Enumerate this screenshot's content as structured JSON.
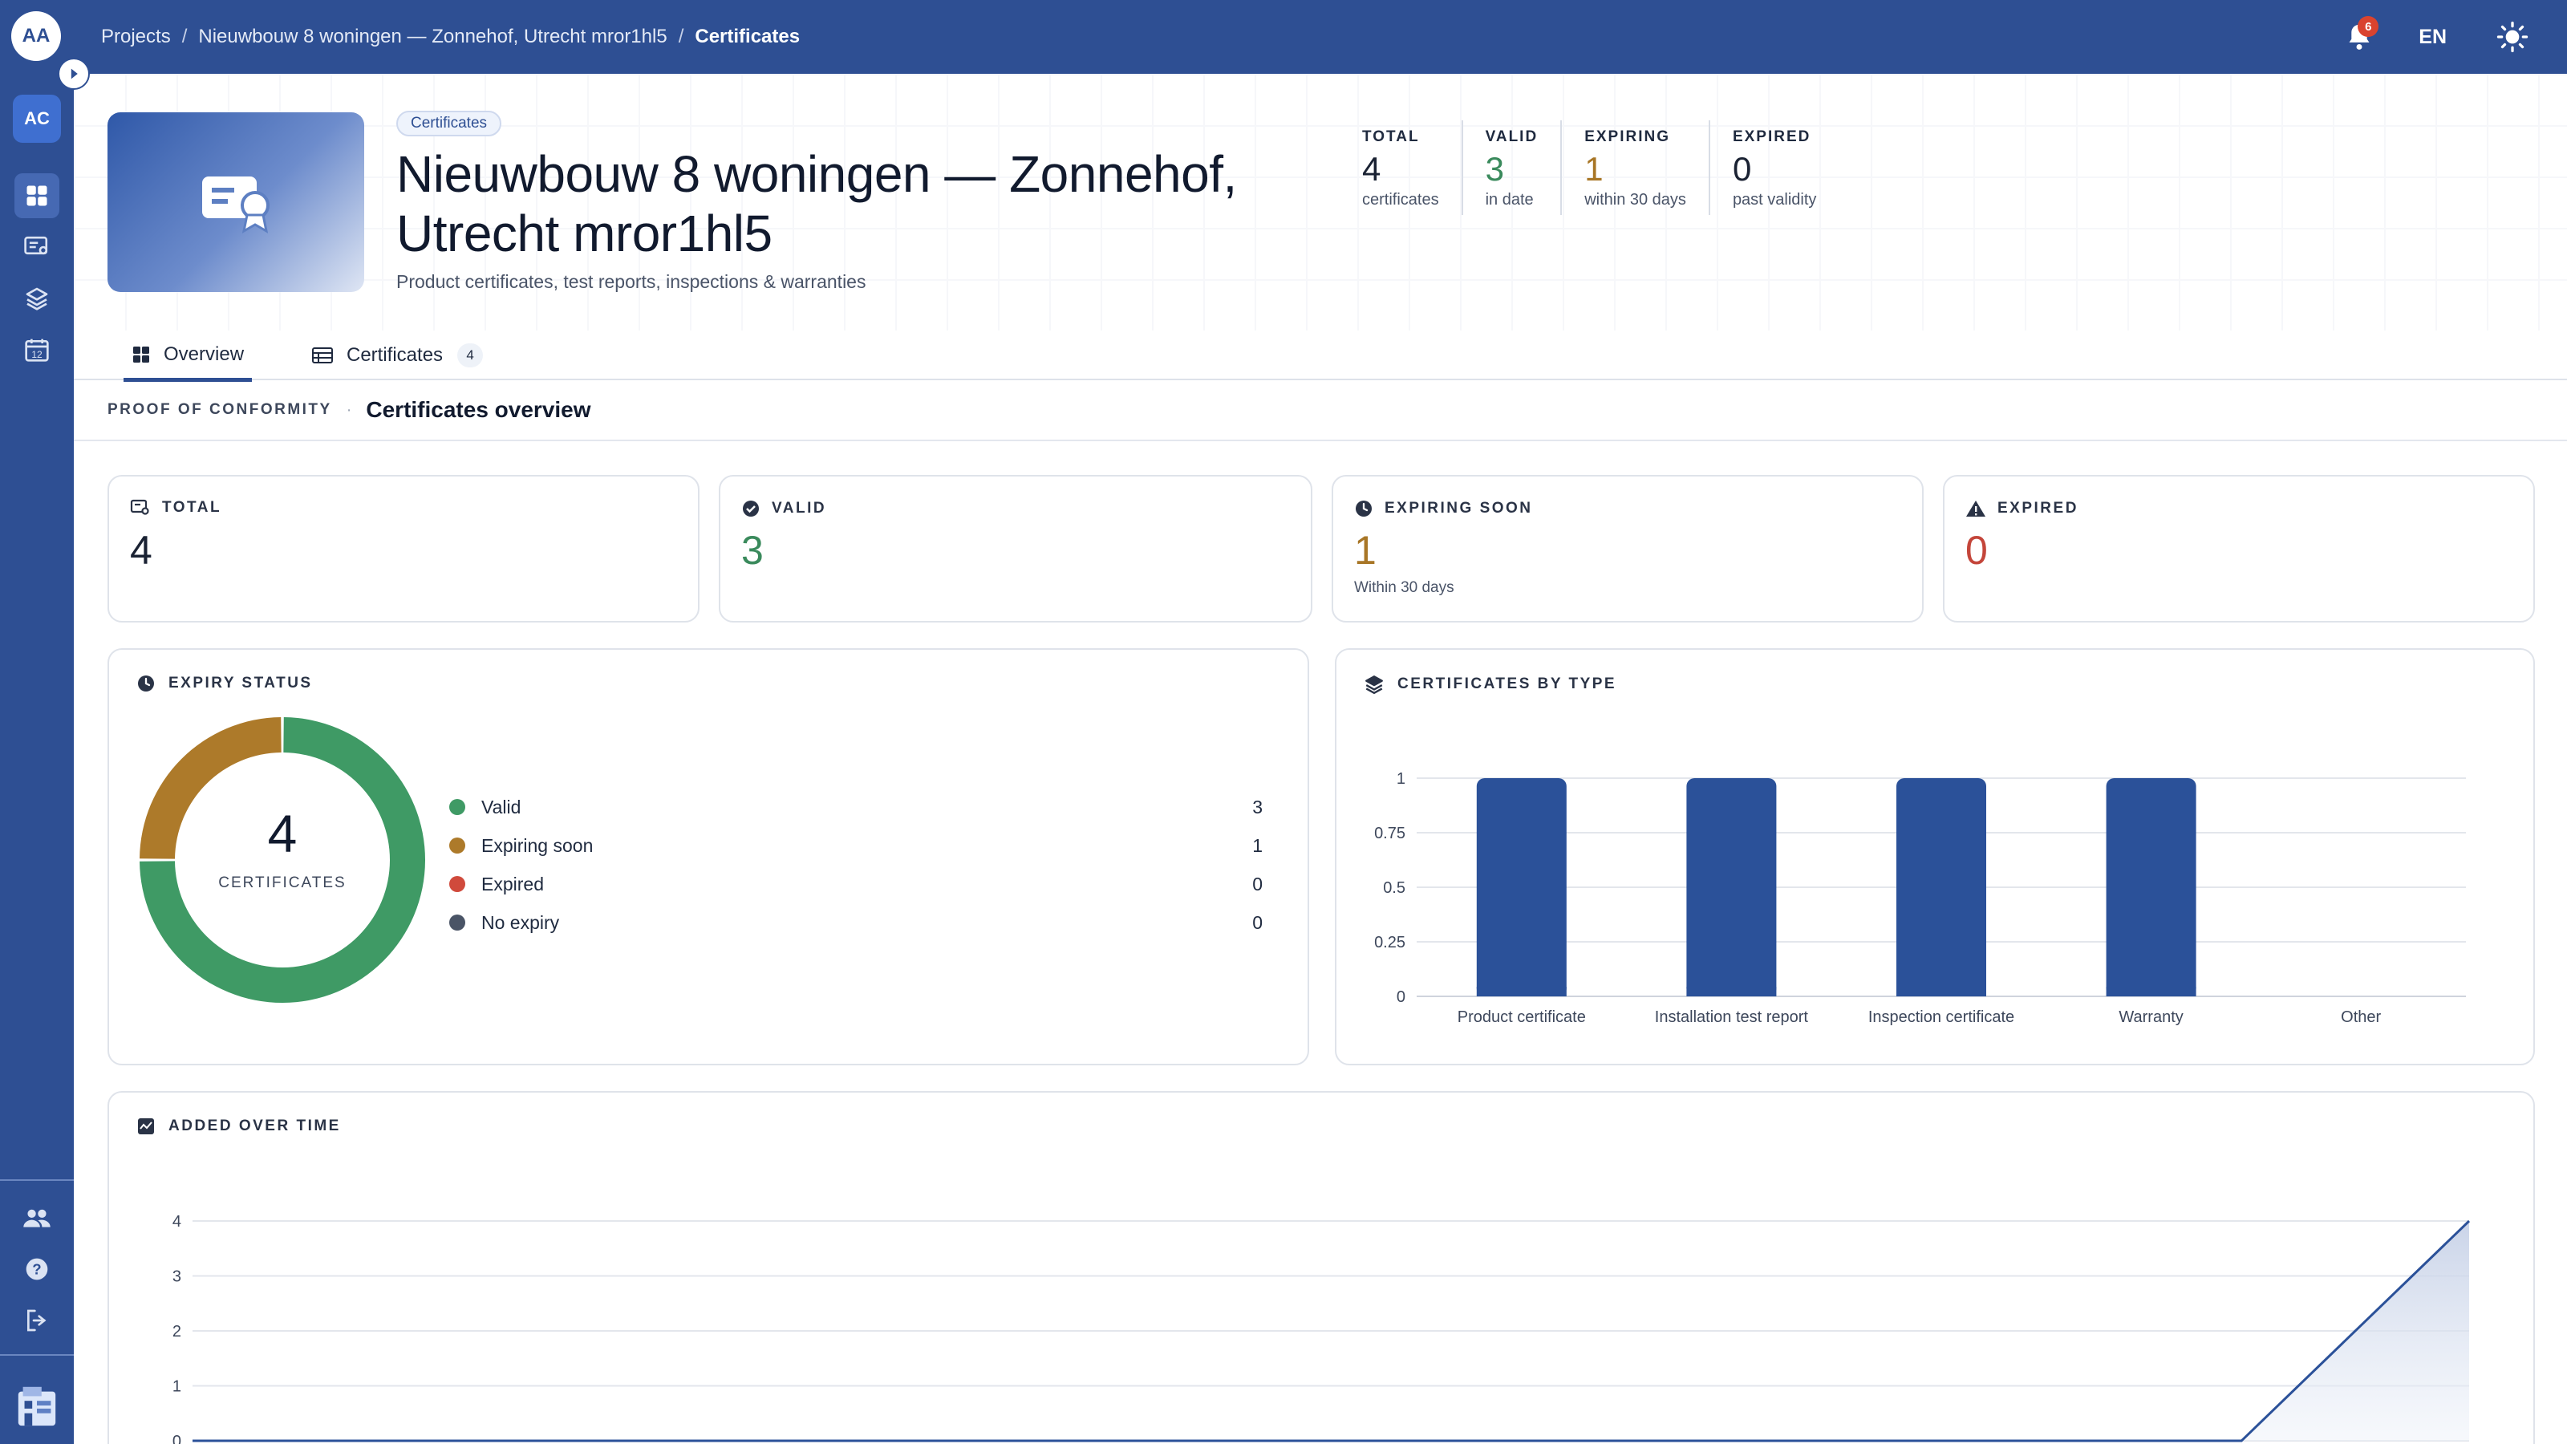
{
  "topbar": {
    "avatar": "AA",
    "breadcrumb": [
      "Projects",
      "Nieuwbouw 8 woningen — Zonnehof, Utrecht mror1hl5",
      "Certificates"
    ],
    "notifications_count": "6",
    "language": "EN"
  },
  "sidebar": {
    "workspace": "AC",
    "icons": [
      "dashboard-icon",
      "certificates-icon",
      "layers-icon",
      "calendar-icon",
      "team-icon",
      "help-icon",
      "logout-icon"
    ],
    "calendar_day": "12"
  },
  "header": {
    "tag": "Certificates",
    "title": "Nieuwbouw 8 woningen — Zonnehof, Utrecht mror1hl5",
    "subtitle": "Product certificates, test reports, inspections & warranties",
    "kpis": [
      {
        "label": "TOTAL",
        "value": "4",
        "sub": "certificates",
        "color": "#1a2233"
      },
      {
        "label": "VALID",
        "value": "3",
        "sub": "in date",
        "color": "#3a8a5c"
      },
      {
        "label": "EXPIRING",
        "value": "1",
        "sub": "within 30 days",
        "color": "#a87626"
      },
      {
        "label": "EXPIRED",
        "value": "0",
        "sub": "past validity",
        "color": "#1a2233"
      }
    ]
  },
  "tabs": [
    {
      "label": "Overview",
      "active": true
    },
    {
      "label": "Certificates",
      "count": "4",
      "active": false
    }
  ],
  "section": {
    "eyebrow": "PROOF OF CONFORMITY",
    "title": "Certificates overview"
  },
  "stats": [
    {
      "label": "TOTAL",
      "value": "4",
      "sub": "",
      "color": "#1a2233",
      "icon": "certificate-icon"
    },
    {
      "label": "VALID",
      "value": "3",
      "sub": "",
      "color": "#3a8a5c",
      "icon": "check-circle-icon"
    },
    {
      "label": "EXPIRING SOON",
      "value": "1",
      "sub": "Within 30 days",
      "color": "#a87626",
      "icon": "clock-icon"
    },
    {
      "label": "EXPIRED",
      "value": "0",
      "sub": "",
      "color": "#c4453a",
      "icon": "warning-icon"
    }
  ],
  "expiry": {
    "title": "EXPIRY STATUS",
    "center_value": "4",
    "center_label": "CERTIFICATES",
    "items": [
      {
        "name": "Valid",
        "value": 3,
        "color": "#3f9a65"
      },
      {
        "name": "Expiring soon",
        "value": 1,
        "color": "#ad7a2a"
      },
      {
        "name": "Expired",
        "value": 0,
        "color": "#d04a3c"
      },
      {
        "name": "No expiry",
        "value": 0,
        "color": "#4a5466"
      }
    ]
  },
  "by_type": {
    "title": "CERTIFICATES BY TYPE"
  },
  "over_time": {
    "title": "ADDED OVER TIME"
  },
  "chart_data": [
    {
      "type": "pie",
      "title": "EXPIRY STATUS",
      "categories": [
        "Valid",
        "Expiring soon",
        "Expired",
        "No expiry"
      ],
      "values": [
        3,
        1,
        0,
        0
      ]
    },
    {
      "type": "bar",
      "title": "CERTIFICATES BY TYPE",
      "categories": [
        "Product certificate",
        "Installation test report",
        "Inspection certificate",
        "Warranty",
        "Other"
      ],
      "values": [
        1,
        1,
        1,
        1,
        0
      ],
      "ylim": [
        0,
        1
      ],
      "yticks": [
        "0",
        "0.25",
        "0.5",
        "0.75",
        "1"
      ],
      "grid": true,
      "color": "#2b5199"
    },
    {
      "type": "area",
      "title": "ADDED OVER TIME",
      "x": [
        0,
        1,
        2,
        3,
        4,
        5,
        6,
        7,
        8,
        9,
        10
      ],
      "values": [
        0,
        0,
        0,
        0,
        0,
        0,
        0,
        0,
        0,
        0,
        4
      ],
      "ylim": [
        0,
        4
      ],
      "yticks": [
        "0",
        "1",
        "2",
        "3",
        "4"
      ],
      "grid": true,
      "color": "#2b5199"
    }
  ]
}
